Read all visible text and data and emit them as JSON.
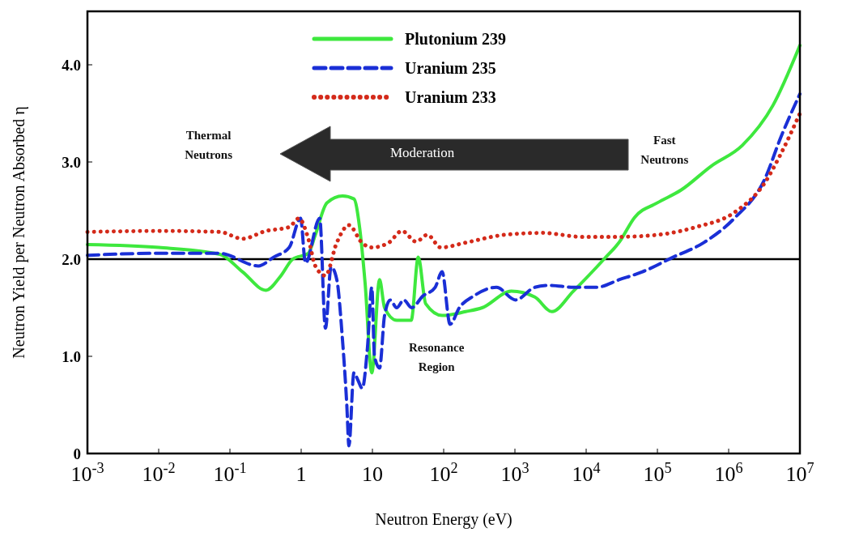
{
  "chart_data": {
    "type": "line",
    "xlabel": "Neutron Energy (eV)",
    "ylabel": "Neutron Yield per Neutron Absorbed η",
    "log": "x",
    "xlim": [
      0.001,
      10000000
    ],
    "ylim": [
      0,
      4.55
    ],
    "xticks": [
      {
        "value": 0.001,
        "label": "10$^{-3}$"
      },
      {
        "value": 0.01,
        "label": "10$^{-2}$"
      },
      {
        "value": 0.1,
        "label": "10$^{-1}$"
      },
      1,
      10,
      {
        "value": 100,
        "label": "10$^{2}$"
      },
      {
        "value": 1000,
        "label": "10$^{3}$"
      },
      {
        "value": 10000,
        "label": "10$^{4}$"
      },
      {
        "value": 100000,
        "label": "10$^{5}$"
      },
      {
        "value": 1000000,
        "label": "10$^{6}$"
      },
      {
        "value": 10000000,
        "label": "10$^{7}$"
      }
    ],
    "yticks": [
      0,
      {
        "value": 1,
        "label": "1.0"
      },
      {
        "value": 2,
        "label": "2.0"
      },
      {
        "value": 3,
        "label": "3.0"
      },
      {
        "value": 4,
        "label": "4.0"
      }
    ],
    "grid": false,
    "legend": "top",
    "ref_lines": [
      {
        "axis": "y",
        "value": 2,
        "color": "#000000",
        "line_style": "solid"
      }
    ],
    "annotations": [
      "Thermal Neutrons",
      "Moderation",
      "Fast Neutrons",
      "Resonance Region"
    ],
    "series": [
      {
        "name": "Plutonium 239",
        "color": "#3ee83e",
        "line_style": "solid",
        "x": [
          0.001,
          0.01,
          0.072,
          0.15,
          0.32,
          0.52,
          0.76,
          1.26,
          1.58,
          2.3,
          3.8,
          5.5,
          6.6,
          7.9,
          9.8,
          12.6,
          14.8,
          22,
          35,
          44,
          56,
          95,
          204,
          347,
          890,
          1900,
          3300,
          6600,
          17800,
          29500,
          47900,
          100000,
          214000,
          575000,
          1550000,
          4170000,
          10000000
        ],
        "values": [
          2.15,
          2.12,
          2.05,
          1.87,
          1.68,
          1.83,
          2.0,
          2.06,
          2.25,
          2.58,
          2.65,
          2.62,
          2.33,
          1.75,
          0.83,
          1.79,
          1.5,
          1.37,
          1.37,
          2.02,
          1.54,
          1.42,
          1.46,
          1.5,
          1.67,
          1.61,
          1.46,
          1.67,
          2.0,
          2.18,
          2.43,
          2.58,
          2.71,
          2.96,
          3.17,
          3.58,
          4.2
        ]
      },
      {
        "name": "Uranium 235",
        "color": "#1a2fd6",
        "line_style": "dashed",
        "x": [
          0.001,
          0.01,
          0.072,
          0.25,
          0.41,
          0.68,
          0.98,
          1.15,
          1.82,
          2.19,
          2.63,
          3.16,
          3.8,
          4.37,
          4.68,
          5.5,
          6.3,
          7.2,
          8.5,
          9.8,
          10.7,
          12.6,
          14.8,
          17.8,
          21.9,
          27.5,
          35.5,
          51,
          76,
          95,
          123,
          166,
          263,
          550,
          1020,
          1900,
          3090,
          6600,
          13800,
          29500,
          61700,
          166000,
          447000,
          1200000,
          3240000,
          5370000,
          10000000
        ],
        "values": [
          2.04,
          2.06,
          2.06,
          1.93,
          2.02,
          2.12,
          2.42,
          1.96,
          2.42,
          1.29,
          1.92,
          1.79,
          1.17,
          0.5,
          0.08,
          0.83,
          0.75,
          0.67,
          1.08,
          1.71,
          1.0,
          0.88,
          1.42,
          1.58,
          1.5,
          1.58,
          1.5,
          1.62,
          1.71,
          1.87,
          1.33,
          1.5,
          1.62,
          1.71,
          1.58,
          1.71,
          1.73,
          1.71,
          1.71,
          1.79,
          1.87,
          2.02,
          2.17,
          2.42,
          2.83,
          3.25,
          3.7
        ]
      },
      {
        "name": "Uranium 233",
        "color": "#d42a1a",
        "line_style": "dotted",
        "x": [
          0.001,
          0.01,
          0.072,
          0.15,
          0.32,
          0.68,
          0.93,
          1.26,
          1.58,
          2.19,
          3.16,
          4.68,
          7.1,
          9.8,
          17,
          26,
          41,
          59,
          91,
          204,
          708,
          2450,
          8500,
          29500,
          100000,
          347000,
          1200000,
          3240000,
          5370000,
          10000000
        ],
        "values": [
          2.28,
          2.29,
          2.28,
          2.21,
          2.29,
          2.33,
          2.42,
          2.21,
          1.93,
          1.83,
          2.17,
          2.35,
          2.17,
          2.12,
          2.17,
          2.29,
          2.18,
          2.25,
          2.12,
          2.17,
          2.25,
          2.27,
          2.23,
          2.23,
          2.25,
          2.33,
          2.48,
          2.79,
          3.08,
          3.5
        ]
      }
    ]
  }
}
